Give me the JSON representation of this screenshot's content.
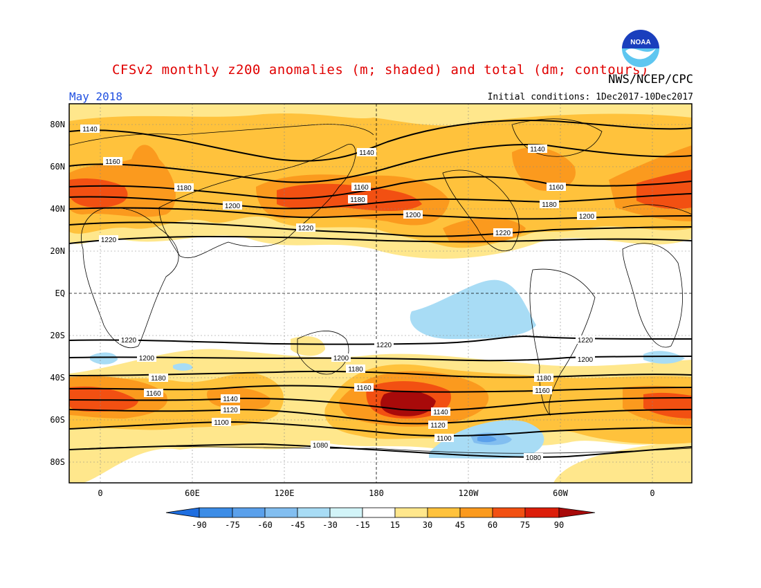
{
  "header": {
    "title": "CFSv2 monthly z200 anomalies (m; shaded) and total (dm; contours)",
    "agency": "NWS/NCEP/CPC",
    "logo_text": "NOAA",
    "valid_month": "May 2018",
    "initial_conditions": "Initial conditions: 1Dec2017-10Dec2017"
  },
  "axes": {
    "lat_labels": [
      "80N",
      "60N",
      "40N",
      "20N",
      "EQ",
      "20S",
      "40S",
      "60S",
      "80S"
    ],
    "lon_labels": [
      "0",
      "60E",
      "120E",
      "180",
      "120W",
      "60W",
      "0"
    ]
  },
  "colorbar": {
    "labels": [
      "-90",
      "-75",
      "-60",
      "-45",
      "-30",
      "-15",
      "15",
      "30",
      "45",
      "60",
      "75",
      "90"
    ],
    "colors": [
      "#1e6ee0",
      "#3c8ce6",
      "#5aa0eb",
      "#82bef0",
      "#a8dcf5",
      "#d2f4f8",
      "#ffffff",
      "#ffe78c",
      "#ffc23c",
      "#fb9a1e",
      "#f25012",
      "#dc1e0a",
      "#a80a0a"
    ]
  },
  "contour_labels": [
    "1140",
    "1160",
    "1180",
    "1200",
    "1220",
    "1140",
    "1160",
    "1180",
    "1200",
    "1220",
    "1140",
    "1160",
    "1180",
    "1200",
    "1220",
    "1220",
    "1200",
    "1180",
    "1160",
    "1140",
    "1120",
    "1100",
    "1080",
    "1220",
    "1200",
    "1180",
    "1160",
    "1140",
    "1120",
    "1100",
    "1080",
    "1220",
    "1200",
    "1180",
    "1160"
  ]
}
